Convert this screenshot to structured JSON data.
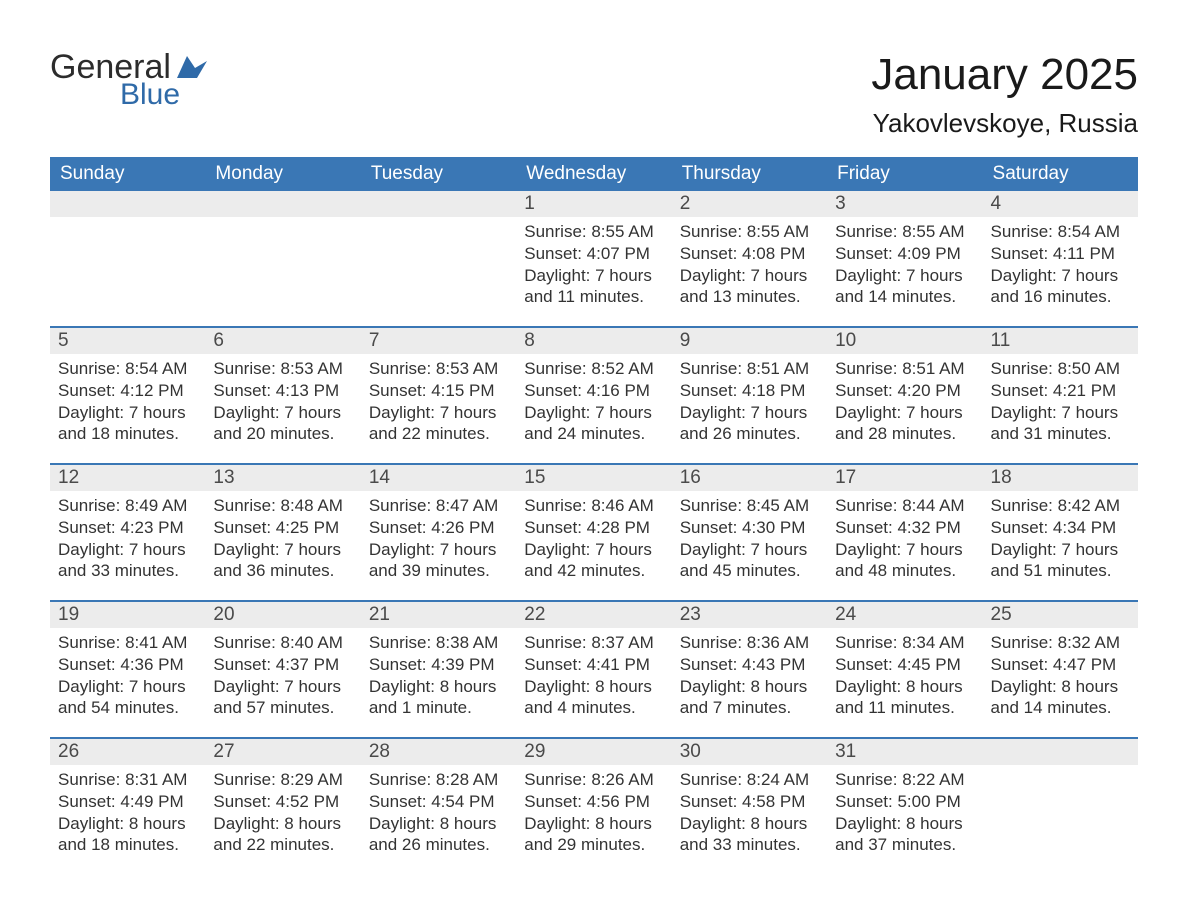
{
  "logo": {
    "word1": "General",
    "word2": "Blue",
    "brand_color": "#2f6aa8"
  },
  "title": "January 2025",
  "subtitle": "Yakovlevskoye, Russia",
  "colors": {
    "header_bg": "#3a77b5",
    "header_text": "#ffffff",
    "daynum_bg": "#ececec",
    "row_border": "#3a77b5",
    "text": "#333333",
    "page_bg": "#ffffff"
  },
  "day_headers": [
    "Sunday",
    "Monday",
    "Tuesday",
    "Wednesday",
    "Thursday",
    "Friday",
    "Saturday"
  ],
  "weeks": [
    [
      null,
      null,
      null,
      {
        "n": "1",
        "sr": "Sunrise: 8:55 AM",
        "ss": "Sunset: 4:07 PM",
        "d1": "Daylight: 7 hours",
        "d2": "and 11 minutes."
      },
      {
        "n": "2",
        "sr": "Sunrise: 8:55 AM",
        "ss": "Sunset: 4:08 PM",
        "d1": "Daylight: 7 hours",
        "d2": "and 13 minutes."
      },
      {
        "n": "3",
        "sr": "Sunrise: 8:55 AM",
        "ss": "Sunset: 4:09 PM",
        "d1": "Daylight: 7 hours",
        "d2": "and 14 minutes."
      },
      {
        "n": "4",
        "sr": "Sunrise: 8:54 AM",
        "ss": "Sunset: 4:11 PM",
        "d1": "Daylight: 7 hours",
        "d2": "and 16 minutes."
      }
    ],
    [
      {
        "n": "5",
        "sr": "Sunrise: 8:54 AM",
        "ss": "Sunset: 4:12 PM",
        "d1": "Daylight: 7 hours",
        "d2": "and 18 minutes."
      },
      {
        "n": "6",
        "sr": "Sunrise: 8:53 AM",
        "ss": "Sunset: 4:13 PM",
        "d1": "Daylight: 7 hours",
        "d2": "and 20 minutes."
      },
      {
        "n": "7",
        "sr": "Sunrise: 8:53 AM",
        "ss": "Sunset: 4:15 PM",
        "d1": "Daylight: 7 hours",
        "d2": "and 22 minutes."
      },
      {
        "n": "8",
        "sr": "Sunrise: 8:52 AM",
        "ss": "Sunset: 4:16 PM",
        "d1": "Daylight: 7 hours",
        "d2": "and 24 minutes."
      },
      {
        "n": "9",
        "sr": "Sunrise: 8:51 AM",
        "ss": "Sunset: 4:18 PM",
        "d1": "Daylight: 7 hours",
        "d2": "and 26 minutes."
      },
      {
        "n": "10",
        "sr": "Sunrise: 8:51 AM",
        "ss": "Sunset: 4:20 PM",
        "d1": "Daylight: 7 hours",
        "d2": "and 28 minutes."
      },
      {
        "n": "11",
        "sr": "Sunrise: 8:50 AM",
        "ss": "Sunset: 4:21 PM",
        "d1": "Daylight: 7 hours",
        "d2": "and 31 minutes."
      }
    ],
    [
      {
        "n": "12",
        "sr": "Sunrise: 8:49 AM",
        "ss": "Sunset: 4:23 PM",
        "d1": "Daylight: 7 hours",
        "d2": "and 33 minutes."
      },
      {
        "n": "13",
        "sr": "Sunrise: 8:48 AM",
        "ss": "Sunset: 4:25 PM",
        "d1": "Daylight: 7 hours",
        "d2": "and 36 minutes."
      },
      {
        "n": "14",
        "sr": "Sunrise: 8:47 AM",
        "ss": "Sunset: 4:26 PM",
        "d1": "Daylight: 7 hours",
        "d2": "and 39 minutes."
      },
      {
        "n": "15",
        "sr": "Sunrise: 8:46 AM",
        "ss": "Sunset: 4:28 PM",
        "d1": "Daylight: 7 hours",
        "d2": "and 42 minutes."
      },
      {
        "n": "16",
        "sr": "Sunrise: 8:45 AM",
        "ss": "Sunset: 4:30 PM",
        "d1": "Daylight: 7 hours",
        "d2": "and 45 minutes."
      },
      {
        "n": "17",
        "sr": "Sunrise: 8:44 AM",
        "ss": "Sunset: 4:32 PM",
        "d1": "Daylight: 7 hours",
        "d2": "and 48 minutes."
      },
      {
        "n": "18",
        "sr": "Sunrise: 8:42 AM",
        "ss": "Sunset: 4:34 PM",
        "d1": "Daylight: 7 hours",
        "d2": "and 51 minutes."
      }
    ],
    [
      {
        "n": "19",
        "sr": "Sunrise: 8:41 AM",
        "ss": "Sunset: 4:36 PM",
        "d1": "Daylight: 7 hours",
        "d2": "and 54 minutes."
      },
      {
        "n": "20",
        "sr": "Sunrise: 8:40 AM",
        "ss": "Sunset: 4:37 PM",
        "d1": "Daylight: 7 hours",
        "d2": "and 57 minutes."
      },
      {
        "n": "21",
        "sr": "Sunrise: 8:38 AM",
        "ss": "Sunset: 4:39 PM",
        "d1": "Daylight: 8 hours",
        "d2": "and 1 minute."
      },
      {
        "n": "22",
        "sr": "Sunrise: 8:37 AM",
        "ss": "Sunset: 4:41 PM",
        "d1": "Daylight: 8 hours",
        "d2": "and 4 minutes."
      },
      {
        "n": "23",
        "sr": "Sunrise: 8:36 AM",
        "ss": "Sunset: 4:43 PM",
        "d1": "Daylight: 8 hours",
        "d2": "and 7 minutes."
      },
      {
        "n": "24",
        "sr": "Sunrise: 8:34 AM",
        "ss": "Sunset: 4:45 PM",
        "d1": "Daylight: 8 hours",
        "d2": "and 11 minutes."
      },
      {
        "n": "25",
        "sr": "Sunrise: 8:32 AM",
        "ss": "Sunset: 4:47 PM",
        "d1": "Daylight: 8 hours",
        "d2": "and 14 minutes."
      }
    ],
    [
      {
        "n": "26",
        "sr": "Sunrise: 8:31 AM",
        "ss": "Sunset: 4:49 PM",
        "d1": "Daylight: 8 hours",
        "d2": "and 18 minutes."
      },
      {
        "n": "27",
        "sr": "Sunrise: 8:29 AM",
        "ss": "Sunset: 4:52 PM",
        "d1": "Daylight: 8 hours",
        "d2": "and 22 minutes."
      },
      {
        "n": "28",
        "sr": "Sunrise: 8:28 AM",
        "ss": "Sunset: 4:54 PM",
        "d1": "Daylight: 8 hours",
        "d2": "and 26 minutes."
      },
      {
        "n": "29",
        "sr": "Sunrise: 8:26 AM",
        "ss": "Sunset: 4:56 PM",
        "d1": "Daylight: 8 hours",
        "d2": "and 29 minutes."
      },
      {
        "n": "30",
        "sr": "Sunrise: 8:24 AM",
        "ss": "Sunset: 4:58 PM",
        "d1": "Daylight: 8 hours",
        "d2": "and 33 minutes."
      },
      {
        "n": "31",
        "sr": "Sunrise: 8:22 AM",
        "ss": "Sunset: 5:00 PM",
        "d1": "Daylight: 8 hours",
        "d2": "and 37 minutes."
      },
      null
    ]
  ]
}
